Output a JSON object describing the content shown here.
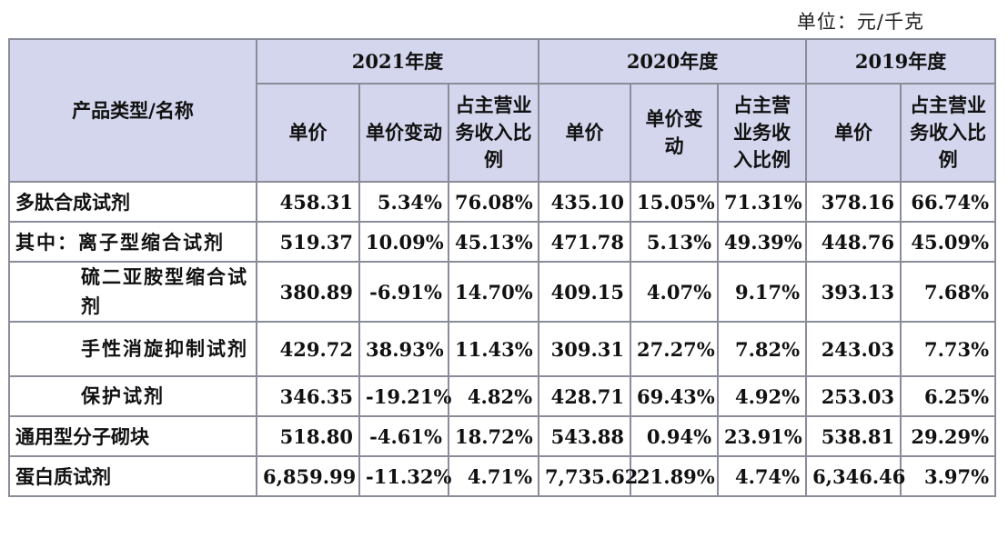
{
  "unit_note": "单位：元/千克",
  "header": {
    "product_col": "产品类型/名称",
    "years": [
      "2021年度",
      "2020年度",
      "2019年度"
    ],
    "col_price": "单价",
    "col_change": "单价变动",
    "col_share": "占主营业务收入比例"
  },
  "rows": [
    {
      "name": "多肽合成试剂",
      "c": [
        "458.31",
        "5.34%",
        "76.08%",
        "435.10",
        "15.05%",
        "71.31%",
        "378.16",
        "66.74%"
      ]
    },
    {
      "name": "其中：离子型缩合试剂",
      "c": [
        "519.37",
        "10.09%",
        "45.13%",
        "471.78",
        "5.13%",
        "49.39%",
        "448.76",
        "45.09%"
      ]
    },
    {
      "name": "硫二亚胺型缩合试剂",
      "c": [
        "380.89",
        "-6.91%",
        "14.70%",
        "409.15",
        "4.07%",
        "9.17%",
        "393.13",
        "7.68%"
      ]
    },
    {
      "name": "手性消旋抑制试剂",
      "c": [
        "429.72",
        "38.93%",
        "11.43%",
        "309.31",
        "27.27%",
        "7.82%",
        "243.03",
        "7.73%"
      ]
    },
    {
      "name": "保护试剂",
      "c": [
        "346.35",
        "-19.21%",
        "4.82%",
        "428.71",
        "69.43%",
        "4.92%",
        "253.03",
        "6.25%"
      ]
    },
    {
      "name": "通用型分子砌块",
      "c": [
        "518.80",
        "-4.61%",
        "18.72%",
        "543.88",
        "0.94%",
        "23.91%",
        "538.81",
        "29.29%"
      ]
    },
    {
      "name": "蛋白质试剂",
      "c": [
        "6,859.99",
        "-11.32%",
        "4.71%",
        "7,735.62",
        "21.89%",
        "4.74%",
        "6,346.46",
        "3.97%"
      ]
    }
  ]
}
